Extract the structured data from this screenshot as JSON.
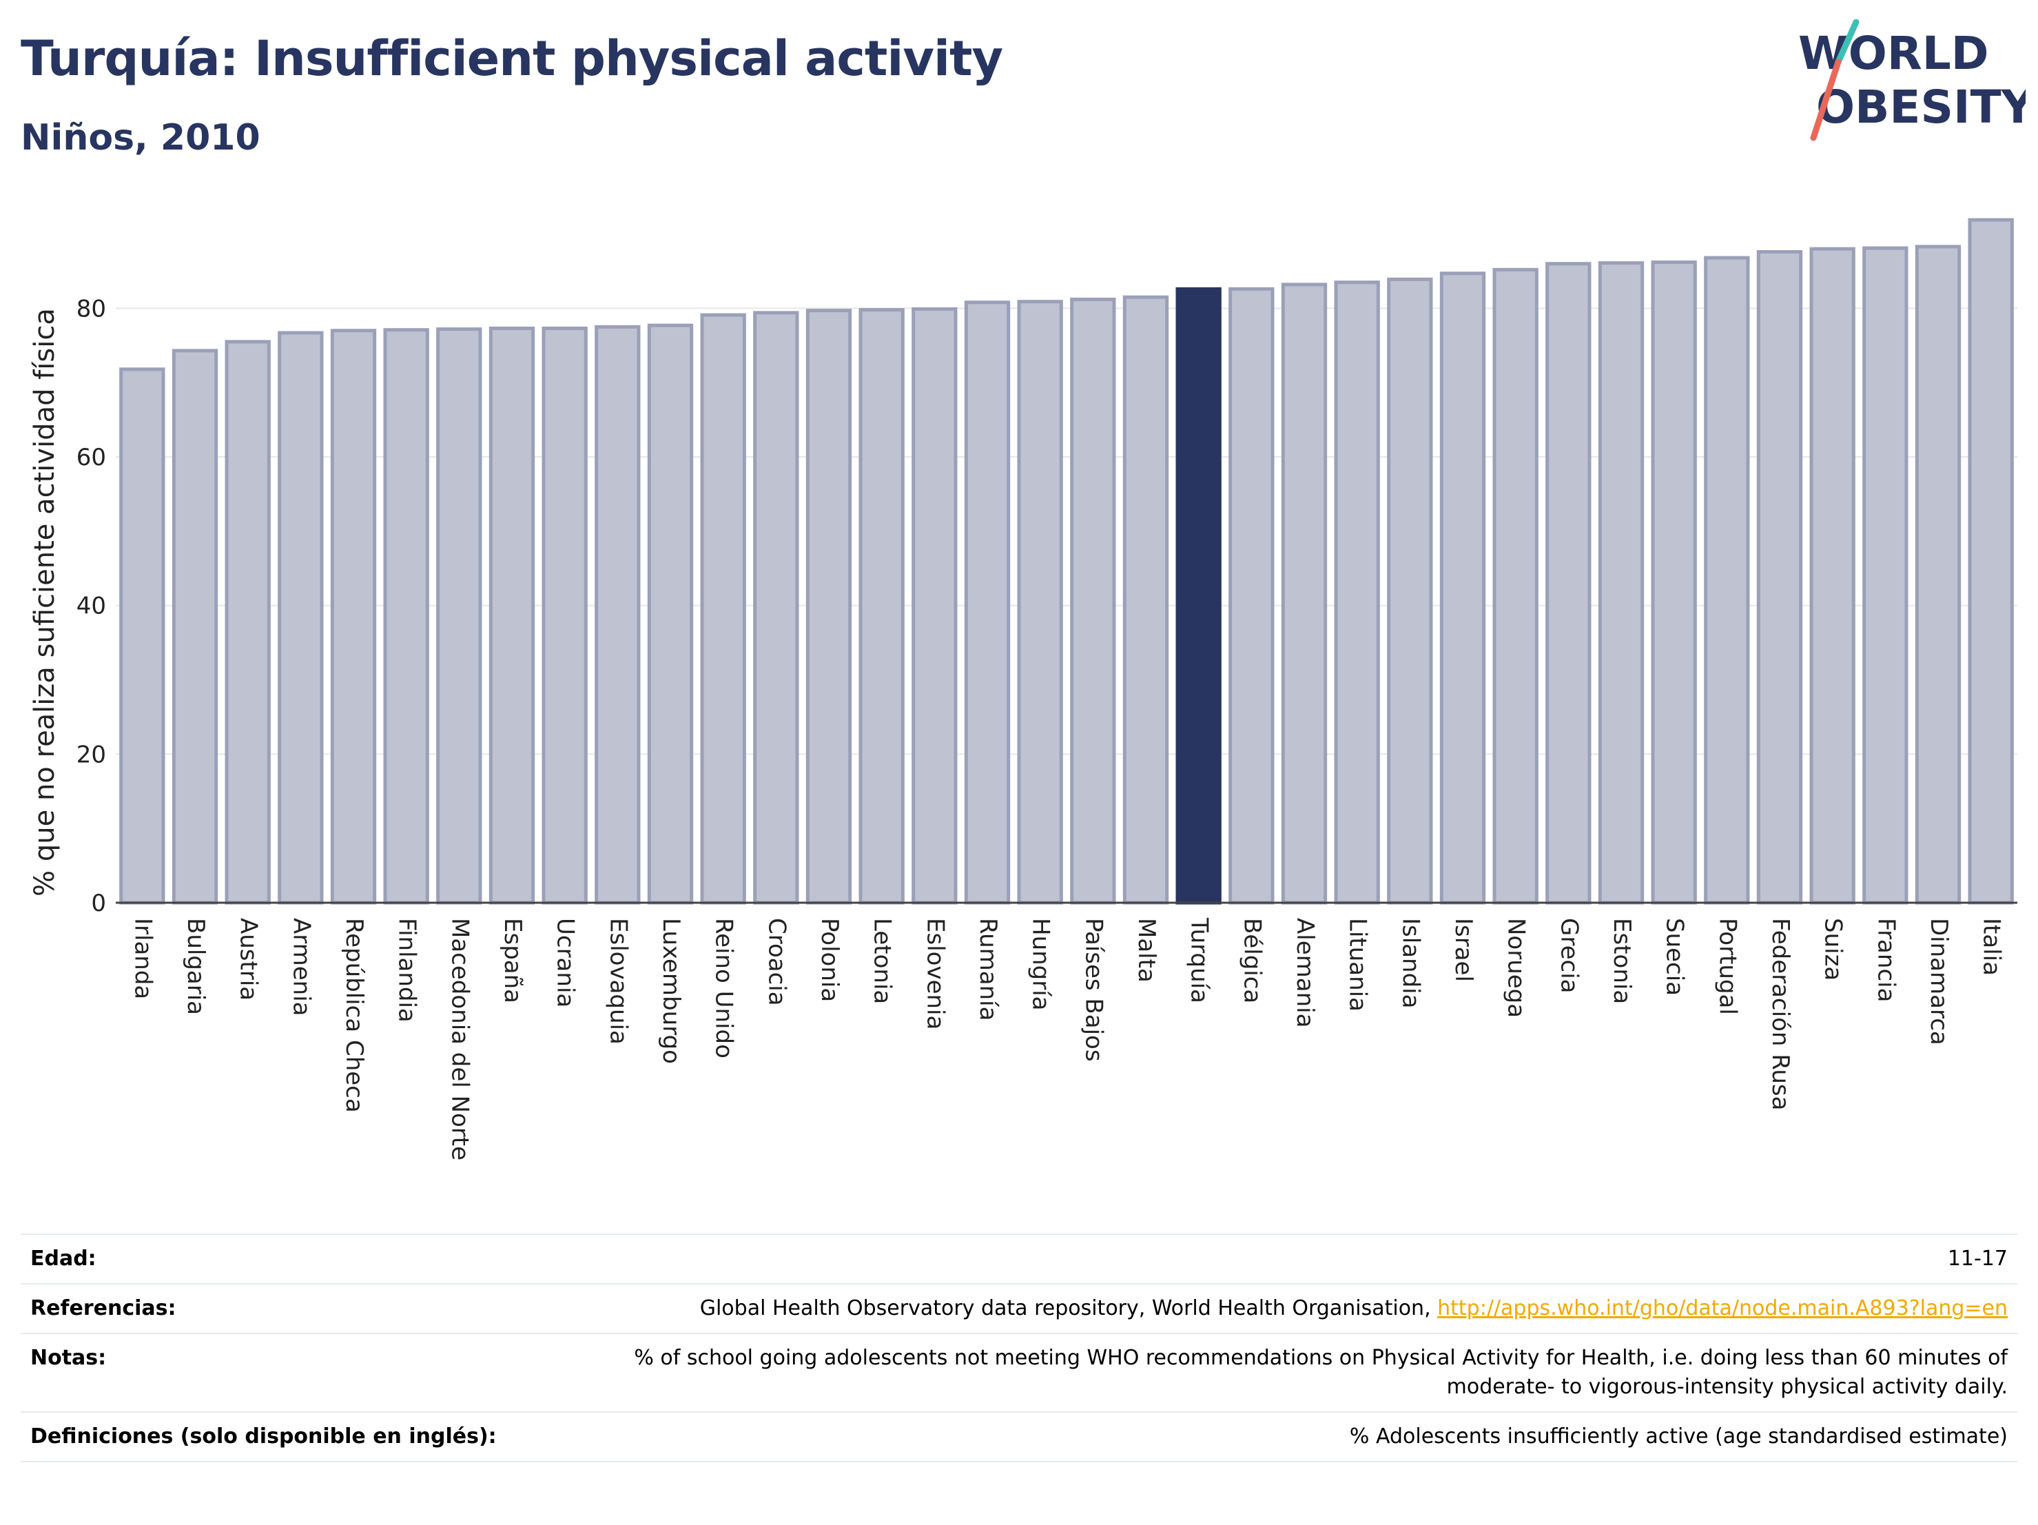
{
  "header": {
    "title": "Turquía: Insufficient physical activity",
    "subtitle": "Niños, 2010"
  },
  "logo": {
    "line1": "WORLD",
    "line2": "OBESITY",
    "text_color": "#283560",
    "slash_color_top": "#3cc0b5",
    "slash_color_bottom": "#e8685a"
  },
  "chart_data": {
    "type": "bar",
    "title": "Turquía: Insufficient physical activity",
    "subtitle": "Niños, 2010",
    "xlabel": "",
    "ylabel": "% que no realiza suficiente actividad física",
    "ylim": [
      0,
      92
    ],
    "yticks": [
      0,
      20,
      40,
      60,
      80
    ],
    "grid": true,
    "highlight": "Turquía",
    "colors": {
      "bar_fill": "#bfc2d0",
      "bar_stroke": "#9aa0b8",
      "highlight_fill": "#283560",
      "grid": "#e8e8e8",
      "axis": "#444444"
    },
    "categories": [
      "Irlanda",
      "Bulgaria",
      "Austria",
      "Armenia",
      "República Checa",
      "Finlandia",
      "Macedonia del Norte",
      "España",
      "Ucrania",
      "Eslovaquia",
      "Luxemburgo",
      "Reino Unido",
      "Croacia",
      "Polonia",
      "Letonia",
      "Eslovenia",
      "Rumanía",
      "Hungría",
      "Países Bajos",
      "Malta",
      "Turquía",
      "Bélgica",
      "Alemania",
      "Lituania",
      "Islandia",
      "Israel",
      "Noruega",
      "Grecia",
      "Estonia",
      "Suecia",
      "Portugal",
      "Federación Rusa",
      "Suiza",
      "Francia",
      "Dinamarca",
      "Italia"
    ],
    "values": [
      71.8,
      74.3,
      75.5,
      76.7,
      77.0,
      77.1,
      77.2,
      77.3,
      77.3,
      77.5,
      77.7,
      79.1,
      79.4,
      79.7,
      79.8,
      79.9,
      80.8,
      80.9,
      81.2,
      81.5,
      82.6,
      82.6,
      83.2,
      83.5,
      83.9,
      84.7,
      85.2,
      86.0,
      86.1,
      86.2,
      86.8,
      87.6,
      88.0,
      88.1,
      88.3,
      91.9
    ]
  },
  "meta": {
    "rows": [
      {
        "key": "Edad:",
        "value": "11-17"
      },
      {
        "key": "Referencias:",
        "value": "Global Health Observatory data repository, World Health Organisation, ",
        "link": "http://apps.who.int/gho/data/node.main.A893?lang=en"
      },
      {
        "key": "Notas:",
        "value": "% of school going adolescents not meeting WHO recommendations on Physical Activity for Health, i.e. doing less than 60 minutes of moderate- to vigorous-intensity physical activity daily."
      },
      {
        "key": "Definiciones (solo disponible en inglés):",
        "value": "% Adolescents insufficiently active (age standardised estimate)"
      }
    ]
  }
}
